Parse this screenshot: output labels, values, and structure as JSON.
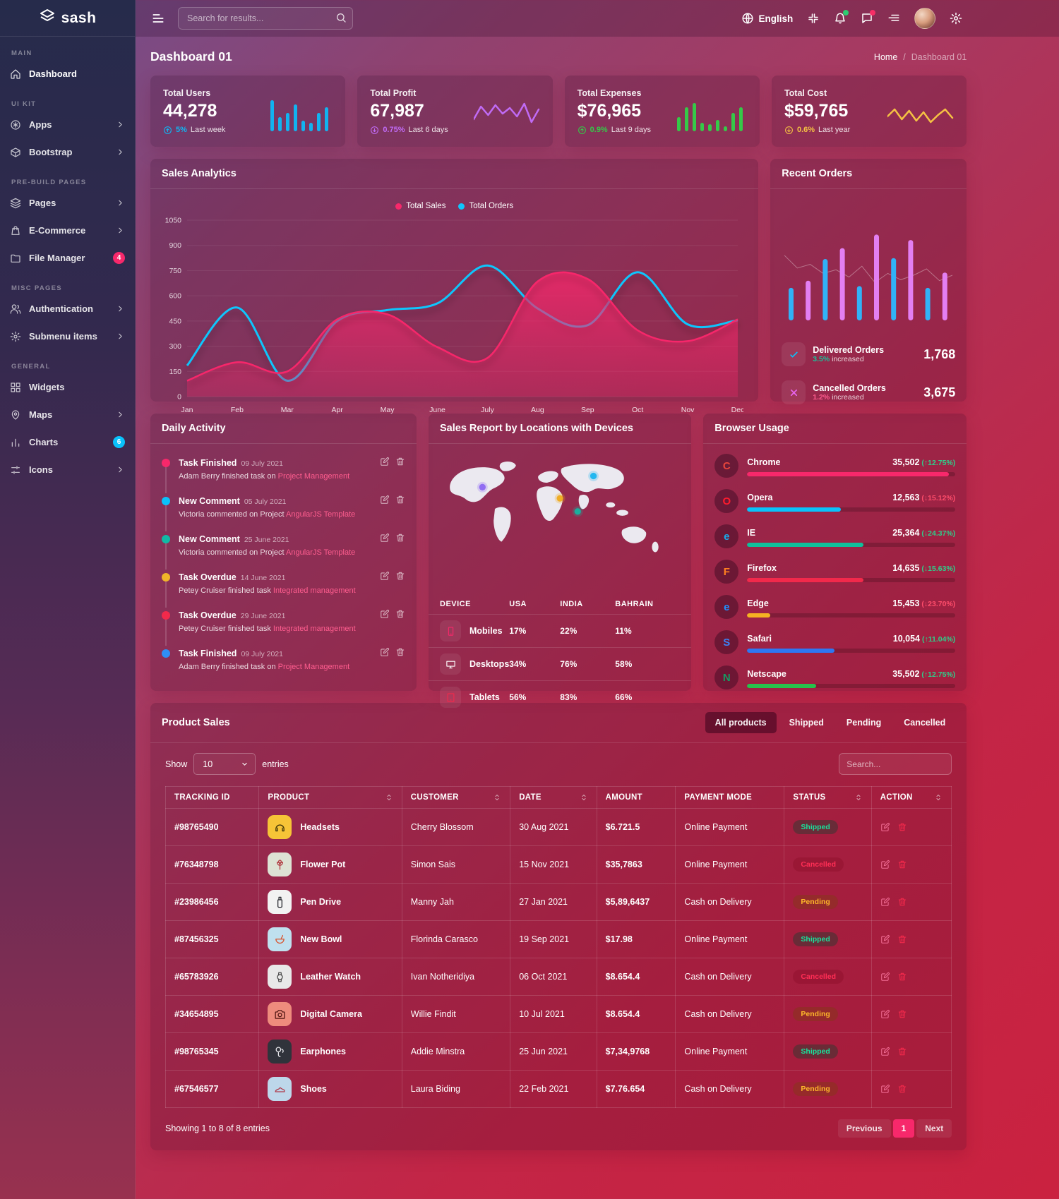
{
  "brand": {
    "name": "sash"
  },
  "header": {
    "search_placeholder": "Search for results...",
    "language": "English",
    "icons": [
      "globe-icon",
      "fullscreen-icon",
      "bell-icon",
      "message-icon",
      "align-right-icon",
      "avatar",
      "gear-icon"
    ],
    "bell_dot_color": "#2ecc71",
    "message_dot_color": "#f72d66"
  },
  "sidebar": {
    "sections": [
      {
        "label": "MAIN",
        "items": [
          {
            "label": "Dashboard",
            "icon": "home",
            "active": true
          }
        ]
      },
      {
        "label": "UI KIT",
        "items": [
          {
            "label": "Apps",
            "icon": "apps",
            "chevron": true
          },
          {
            "label": "Bootstrap",
            "icon": "package",
            "chevron": true
          }
        ]
      },
      {
        "label": "PRE-BUILD PAGES",
        "items": [
          {
            "label": "Pages",
            "icon": "layers",
            "chevron": true
          },
          {
            "label": "E-Commerce",
            "icon": "bag",
            "chevron": true
          },
          {
            "label": "File Manager",
            "icon": "folder",
            "badge": "4",
            "badge_color": "#f7286b"
          }
        ]
      },
      {
        "label": "MISC PAGES",
        "items": [
          {
            "label": "Authentication",
            "icon": "users",
            "chevron": true
          },
          {
            "label": "Submenu items",
            "icon": "gear",
            "chevron": true
          }
        ]
      },
      {
        "label": "GENERAL",
        "items": [
          {
            "label": "Widgets",
            "icon": "widgets"
          },
          {
            "label": "Maps",
            "icon": "pin",
            "chevron": true
          },
          {
            "label": "Charts",
            "icon": "chart",
            "badge": "6",
            "badge_color": "#09c2fb"
          },
          {
            "label": "Icons",
            "icon": "sliders",
            "chevron": true
          }
        ]
      }
    ]
  },
  "page": {
    "title": "Dashboard 01",
    "breadcrumb": {
      "home": "Home",
      "separator": "/",
      "current": "Dashboard 01"
    }
  },
  "stats": [
    {
      "label": "Total Users",
      "value": "44,278",
      "delta": "5%",
      "note": "Last week",
      "dir": "up",
      "color": "#12b3f0",
      "spark_type": "bars",
      "spark": [
        44,
        20,
        26,
        38,
        15,
        12,
        26,
        34
      ]
    },
    {
      "label": "Total Profit",
      "value": "67,987",
      "delta": "0.75%",
      "note": "Last 6 days",
      "dir": "down",
      "color": "#c06bf5",
      "spark_type": "line",
      "spark": [
        12,
        30,
        18,
        32,
        20,
        28,
        16,
        34,
        8,
        26
      ]
    },
    {
      "label": "Total Expenses",
      "value": "$76,965",
      "delta": "0.9%",
      "note": "Last 9 days",
      "dir": "up",
      "color": "#35c948",
      "spark_type": "bars",
      "spark": [
        20,
        34,
        40,
        12,
        10,
        16,
        7,
        26,
        34
      ]
    },
    {
      "label": "Total Cost",
      "value": "$59,765",
      "delta": "0.6%",
      "note": "Last year",
      "dir": "down",
      "color": "#f5c243",
      "spark_type": "line",
      "spark": [
        16,
        26,
        12,
        24,
        10,
        22,
        8,
        18,
        26,
        14
      ]
    }
  ],
  "chart_data": [
    {
      "type": "line",
      "title": "Sales Analytics",
      "categories": [
        "Jan",
        "Feb",
        "Mar",
        "Apr",
        "May",
        "June",
        "July",
        "Aug",
        "Sep",
        "Oct",
        "Nov",
        "Dec"
      ],
      "series": [
        {
          "name": "Total Sales",
          "color": "#f7286b",
          "values": [
            95,
            205,
            150,
            460,
            490,
            295,
            230,
            685,
            700,
            395,
            330,
            460
          ]
        },
        {
          "name": "Total Orders",
          "color": "#0fc6fd",
          "values": [
            185,
            530,
            95,
            450,
            515,
            555,
            780,
            525,
            425,
            740,
            430,
            455
          ]
        }
      ],
      "ylim": [
        0,
        1050
      ],
      "yticks": [
        0,
        150,
        300,
        450,
        600,
        750,
        900,
        1050
      ],
      "grid": true,
      "legend_position": "top"
    },
    {
      "type": "bar",
      "title": "Recent Orders",
      "values": [
        36,
        44,
        68,
        80,
        38,
        95,
        69,
        89,
        36,
        53
      ],
      "bar_colors": [
        "#31b2f7",
        "#e37ff2"
      ],
      "line_overlay": [
        72,
        58,
        62,
        52,
        56,
        48,
        60,
        42,
        52,
        45,
        50,
        57,
        44,
        50
      ]
    }
  ],
  "recent_orders": {
    "title": "Recent Orders",
    "stats": [
      {
        "label": "Delivered Orders",
        "pct": "3.5%",
        "pct_color": "#19c29b",
        "note": "increased",
        "value": "1,768",
        "icon": "check",
        "icon_color": "#09c2fb"
      },
      {
        "label": "Cancelled Orders",
        "pct": "1.2%",
        "pct_color": "#ff5d8f",
        "note": "increased",
        "value": "3,675",
        "icon": "close",
        "icon_color": "#e864f0"
      }
    ]
  },
  "daily_activity": {
    "title": "Daily Activity",
    "items": [
      {
        "title": "Task Finished",
        "date": "09 July 2021",
        "text": "Adam Berry finished task on ",
        "link": "Project Management",
        "dot": "#f7286b"
      },
      {
        "title": "New Comment",
        "date": "05 July 2021",
        "text": "Victoria commented on Project ",
        "link": "AngularJS Template",
        "dot": "#09c2fb"
      },
      {
        "title": "New Comment",
        "date": "25 June 2021",
        "text": "Victoria commented on Project ",
        "link": "AngularJS Template",
        "dot": "#11b9a5"
      },
      {
        "title": "Task Overdue",
        "date": "14 June 2021",
        "text": "Petey Cruiser finished task ",
        "link": "Integrated management",
        "dot": "#f0b429"
      },
      {
        "title": "Task Overdue",
        "date": "29 June 2021",
        "text": "Petey Cruiser finished task ",
        "link": "Integrated management",
        "dot": "#f2294b"
      },
      {
        "title": "Task Finished",
        "date": "09 July 2021",
        "text": "Adam Berry finished task on ",
        "link": "Project Management",
        "dot": "#2f8ef5"
      }
    ]
  },
  "sales_report": {
    "title": "Sales Report by Locations with Devices",
    "columns": [
      "DEVICE",
      "USA",
      "INDIA",
      "BAHRAIN"
    ],
    "rows": [
      {
        "device": "Mobiles",
        "icon": "mobile",
        "icon_color": "#f7286b",
        "usa": "17%",
        "india": "22%",
        "bahrain": "11%"
      },
      {
        "device": "Desktops",
        "icon": "desktop",
        "icon_color": "#ffffff",
        "usa": "34%",
        "india": "76%",
        "bahrain": "58%"
      },
      {
        "device": "Tablets",
        "icon": "tablet",
        "icon_color": "#f2294b",
        "usa": "56%",
        "india": "83%",
        "bahrain": "66%"
      }
    ],
    "markers": [
      {
        "x": 67,
        "y": 47,
        "color": "#8a63f2"
      },
      {
        "x": 185,
        "y": 64,
        "color": "#f0a817"
      },
      {
        "x": 236,
        "y": 30,
        "color": "#12b3f0"
      },
      {
        "x": 212,
        "y": 84,
        "color": "#11b9a5"
      }
    ]
  },
  "browser_usage": {
    "title": "Browser Usage",
    "rows": [
      {
        "name": "Chrome",
        "value": "35,502",
        "change": "12.75%",
        "dir": "up",
        "change_color": "#2ecf8a",
        "bar_color": "#f7286b",
        "pct": 97,
        "brand_color": "#e8453c",
        "letter": "C"
      },
      {
        "name": "Opera",
        "value": "12,563",
        "change": "15.12%",
        "dir": "down",
        "change_color": "#ff4d6b",
        "bar_color": "#09c2fb",
        "pct": 45,
        "brand_color": "#ff1b2d",
        "letter": "O"
      },
      {
        "name": "IE",
        "value": "25,364",
        "change": "24.37%",
        "dir": "down",
        "change_color": "#2ecf8a",
        "bar_color": "#10bf9b",
        "pct": 56,
        "brand_color": "#19aaea",
        "letter": "e"
      },
      {
        "name": "Firefox",
        "value": "14,635",
        "change": "15.63%",
        "dir": "down",
        "change_color": "#2ecf8a",
        "bar_color": "#f2294b",
        "pct": 56,
        "brand_color": "#ff8020",
        "letter": "F"
      },
      {
        "name": "Edge",
        "value": "15,453",
        "change": "23.70%",
        "dir": "down",
        "change_color": "#ff4d6b",
        "bar_color": "#f5b322",
        "pct": 11,
        "brand_color": "#1e90ff",
        "letter": "e"
      },
      {
        "name": "Safari",
        "value": "10,054",
        "change": "11.04%",
        "dir": "up",
        "change_color": "#2ecf8a",
        "bar_color": "#2e77f3",
        "pct": 42,
        "brand_color": "#3b82f6",
        "letter": "S"
      },
      {
        "name": "Netscape",
        "value": "35,502",
        "change": "12.75%",
        "dir": "up",
        "change_color": "#2ecf8a",
        "bar_color": "#27c24c",
        "pct": 33,
        "brand_color": "#169b62",
        "letter": "N"
      }
    ]
  },
  "product_sales": {
    "title": "Product Sales",
    "tabs": [
      "All products",
      "Shipped",
      "Pending",
      "Cancelled"
    ],
    "active_tab": 0,
    "controls": {
      "show": "Show",
      "entries_value": "10",
      "entries": "entries",
      "search_placeholder": "Search..."
    },
    "columns": [
      {
        "label": "TRACKING ID",
        "sort": false
      },
      {
        "label": "PRODUCT",
        "sort": true
      },
      {
        "label": "CUSTOMER",
        "sort": true
      },
      {
        "label": "DATE",
        "sort": true
      },
      {
        "label": "AMOUNT",
        "sort": false
      },
      {
        "label": "PAYMENT MODE",
        "sort": false
      },
      {
        "label": "STATUS",
        "sort": true
      },
      {
        "label": "ACTION",
        "sort": true
      }
    ],
    "status_styles": {
      "Shipped": {
        "fg": "#19e29b",
        "bg": "rgba(8,66,44,0.38)"
      },
      "Cancelled": {
        "fg": "#ff2e55",
        "bg": "rgba(130,10,35,0.32)"
      },
      "Pending": {
        "fg": "#fdb82a",
        "bg": "rgba(115,72,4,0.32)"
      }
    },
    "rows": [
      {
        "id": "#98765490",
        "product": "Headsets",
        "icon": "headphones",
        "icon_bg": "#f6c437",
        "icon_fg": "#3a3106",
        "customer": "Cherry Blossom",
        "date": "30 Aug 2021",
        "amount": "$6.721.5",
        "payment": "Online Payment",
        "status": "Shipped"
      },
      {
        "id": "#76348798",
        "product": "Flower Pot",
        "icon": "flower",
        "icon_bg": "#dde2d4",
        "icon_fg": "#b0383f",
        "customer": "Simon Sais",
        "date": "15 Nov 2021",
        "amount": "$35,7863",
        "payment": "Online Payment",
        "status": "Cancelled"
      },
      {
        "id": "#23986456",
        "product": "Pen Drive",
        "icon": "usb",
        "icon_bg": "#f2f2f2",
        "icon_fg": "#23242b",
        "customer": "Manny Jah",
        "date": "27 Jan 2021",
        "amount": "$5,89,6437",
        "payment": "Cash on Delivery",
        "status": "Pending"
      },
      {
        "id": "#87456325",
        "product": "New Bowl",
        "icon": "bowl",
        "icon_bg": "#bfe0ee",
        "icon_fg": "#d8542e",
        "customer": "Florinda Carasco",
        "date": "19 Sep 2021",
        "amount": "$17.98",
        "payment": "Online Payment",
        "status": "Shipped"
      },
      {
        "id": "#65783926",
        "product": "Leather Watch",
        "icon": "watch",
        "icon_bg": "#e8e8e8",
        "icon_fg": "#4a4a4a",
        "customer": "Ivan Notheridiya",
        "date": "06 Oct 2021",
        "amount": "$8.654.4",
        "payment": "Cash on Delivery",
        "status": "Cancelled"
      },
      {
        "id": "#34654895",
        "product": "Digital Camera",
        "icon": "camera",
        "icon_bg": "#ee8c7d",
        "icon_fg": "#4d1410",
        "customer": "Willie Findit",
        "date": "10 Jul 2021",
        "amount": "$8.654.4",
        "payment": "Cash on Delivery",
        "status": "Pending"
      },
      {
        "id": "#98765345",
        "product": "Earphones",
        "icon": "earbud",
        "icon_bg": "#30333b",
        "icon_fg": "#e8e8ec",
        "customer": "Addie Minstra",
        "date": "25 Jun 2021",
        "amount": "$7,34,9768",
        "payment": "Online Payment",
        "status": "Shipped"
      },
      {
        "id": "#67546577",
        "product": "Shoes",
        "icon": "shoe",
        "icon_bg": "#bdd7ea",
        "icon_fg": "#b03a4a",
        "customer": "Laura Biding",
        "date": "22 Feb 2021",
        "amount": "$7.76.654",
        "payment": "Cash on Delivery",
        "status": "Pending"
      }
    ],
    "footer": {
      "summary": "Showing 1 to 8 of 8 entries",
      "prev": "Previous",
      "page": "1",
      "next": "Next"
    }
  }
}
